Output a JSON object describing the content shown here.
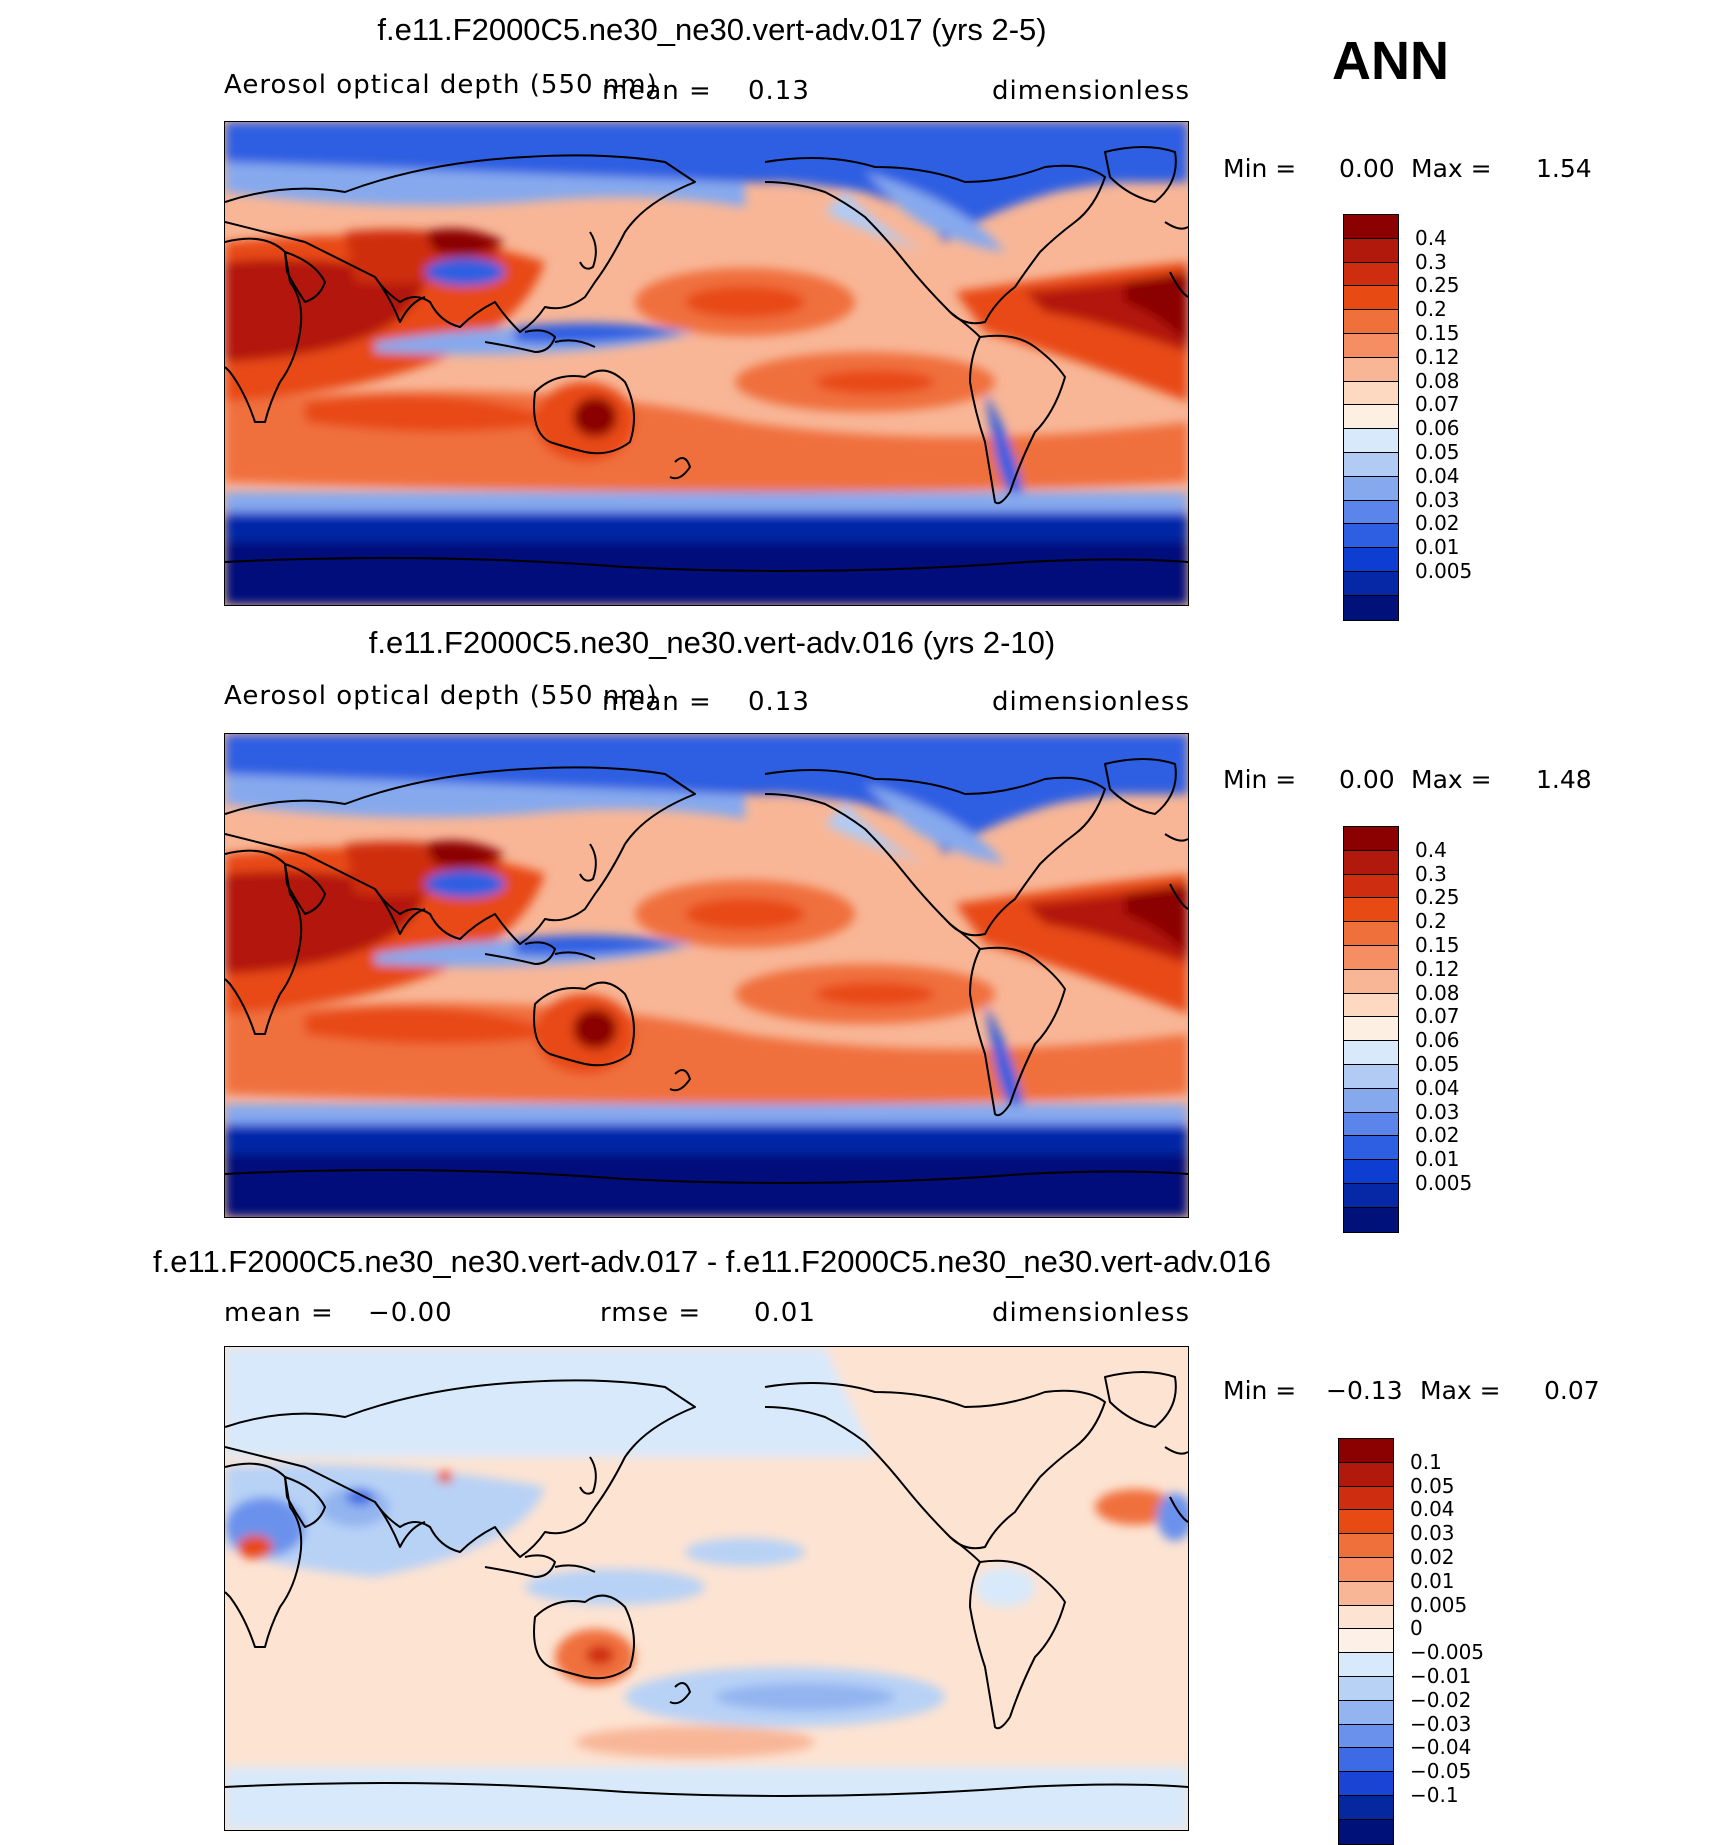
{
  "season": "ANN",
  "panels": [
    {
      "title": "f.e11.F2000C5.ne30_ne30.vert-adv.017 (yrs 2-5)",
      "variable": "Aerosol optical depth (550 nm)",
      "mean_label": "mean =",
      "mean_value": "0.13",
      "units": "dimensionless",
      "min_label": "Min =",
      "min_value": "0.00",
      "max_label": "Max =",
      "max_value": "1.54",
      "levels": [
        "0.4",
        "0.3",
        "0.25",
        "0.2",
        "0.15",
        "0.12",
        "0.08",
        "0.07",
        "0.06",
        "0.05",
        "0.04",
        "0.03",
        "0.02",
        "0.01",
        "0.005"
      ],
      "colors": [
        "#8b0000",
        "#b2190d",
        "#cf2d0f",
        "#e84a14",
        "#f0703c",
        "#f58e62",
        "#f8b697",
        "#fdd9c2",
        "#fdf0e2",
        "#d8e9fb",
        "#b1cbf4",
        "#86a9ee",
        "#5b85ea",
        "#2e5fe2",
        "#0d3dd1",
        "#0628a6",
        "#00117a"
      ]
    },
    {
      "title": "f.e11.F2000C5.ne30_ne30.vert-adv.016 (yrs 2-10)",
      "variable": "Aerosol optical depth (550 nm)",
      "mean_label": "mean =",
      "mean_value": "0.13",
      "units": "dimensionless",
      "min_label": "Min =",
      "min_value": "0.00",
      "max_label": "Max =",
      "max_value": "1.48",
      "levels": [
        "0.4",
        "0.3",
        "0.25",
        "0.2",
        "0.15",
        "0.12",
        "0.08",
        "0.07",
        "0.06",
        "0.05",
        "0.04",
        "0.03",
        "0.02",
        "0.01",
        "0.005"
      ],
      "colors": [
        "#8b0000",
        "#b2190d",
        "#cf2d0f",
        "#e84a14",
        "#f0703c",
        "#f58e62",
        "#f8b697",
        "#fdd9c2",
        "#fdf0e2",
        "#d8e9fb",
        "#b1cbf4",
        "#86a9ee",
        "#5b85ea",
        "#2e5fe2",
        "#0d3dd1",
        "#0628a6",
        "#00117a"
      ]
    },
    {
      "title": "f.e11.F2000C5.ne30_ne30.vert-adv.017 - f.e11.F2000C5.ne30_ne30.vert-adv.016",
      "mean_label": "mean =",
      "mean_value": "−0.00",
      "rmse_label": "rmse =",
      "rmse_value": "0.01",
      "units": "dimensionless",
      "min_label": "Min =",
      "min_value": "−0.13",
      "max_label": "Max =",
      "max_value": "0.07",
      "levels": [
        "0.1",
        "0.05",
        "0.04",
        "0.03",
        "0.02",
        "0.01",
        "0.005",
        "0",
        "−0.005",
        "−0.01",
        "−0.02",
        "−0.03",
        "−0.04",
        "−0.05",
        "−0.1"
      ],
      "colors": [
        "#8b0000",
        "#b2190d",
        "#cf2d0f",
        "#e84a14",
        "#f0703c",
        "#f58e62",
        "#f8b697",
        "#fde3d2",
        "#fdf0e6",
        "#d8e9fb",
        "#b8d2f6",
        "#93b4f0",
        "#6a92ec",
        "#3e6ae5",
        "#1944d4",
        "#06289e",
        "#00117a"
      ]
    }
  ]
}
